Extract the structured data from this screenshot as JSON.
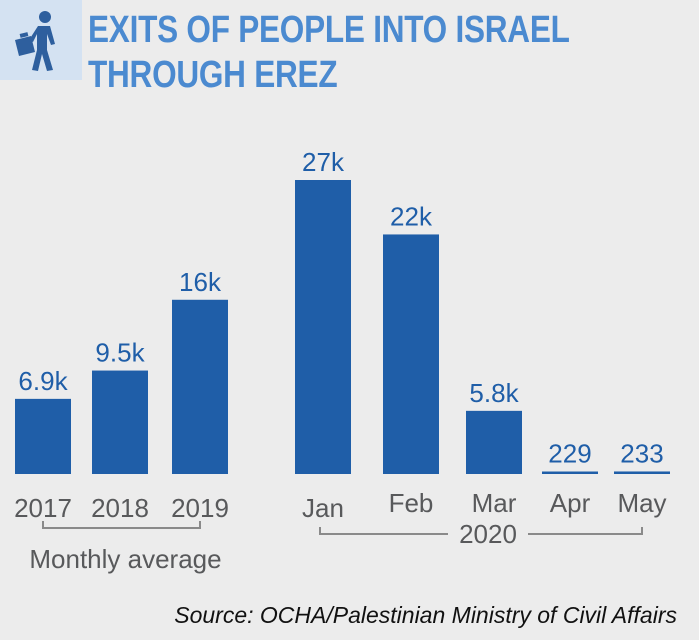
{
  "header": {
    "icon": "person-walking-with-bag-icon",
    "title_line1": "EXITS OF PEOPLE INTO ISRAEL",
    "title_line2": "THROUGH EREZ"
  },
  "colors": {
    "bar": "#1f5ea8",
    "title": "#4b8ad0",
    "icon": "#2e5f9e",
    "icon_bg": "#d4e2f2",
    "text": "#58595b",
    "bracket": "#8a8a8a",
    "background": "#ececec"
  },
  "chart_data": {
    "type": "bar",
    "categories": [
      "2017",
      "2018",
      "2019",
      "Jan",
      "Feb",
      "Mar",
      "Apr",
      "May"
    ],
    "values": [
      6900,
      9500,
      16000,
      27000,
      22000,
      5800,
      229,
      233
    ],
    "data_labels": [
      "6.9k",
      "9.5k",
      "16k",
      "27k",
      "22k",
      "5.8k",
      "229",
      "233"
    ],
    "groups": [
      {
        "label": "Monthly average",
        "categories": [
          "2017",
          "2018",
          "2019"
        ]
      },
      {
        "label": "2020",
        "categories": [
          "Jan",
          "Feb",
          "Mar",
          "Apr",
          "May"
        ]
      }
    ],
    "ylim": [
      0,
      27000
    ],
    "grid": false,
    "legend": "none"
  },
  "source": "Source: OCHA/Palestinian Ministry of Civil Affairs"
}
